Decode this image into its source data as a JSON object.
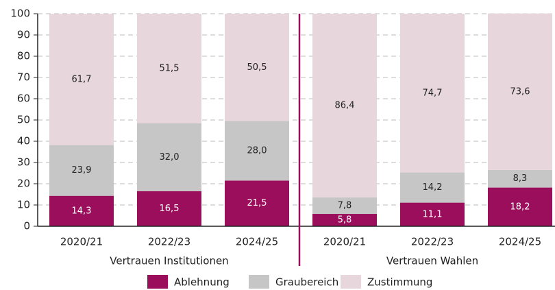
{
  "chart_data": {
    "type": "stacked_bar",
    "categories": [
      "2020/21",
      "2022/23",
      "2024/25",
      "2020/21",
      "2022/23",
      "2024/25"
    ],
    "groups": [
      "Vertrauen Institutionen",
      "Vertrauen Wahlen"
    ],
    "series": [
      {
        "name": "Ablehnung",
        "color": "#9b0e5b",
        "label_color": "#ffffff",
        "values": [
          14.3,
          16.5,
          21.5,
          5.8,
          11.1,
          18.2
        ],
        "value_labels": [
          "14,3",
          "16,5",
          "21,5",
          "5,8",
          "11,1",
          "18,2"
        ]
      },
      {
        "name": "Graubereich",
        "color": "#c6c6c6",
        "label_color": "#222222",
        "values": [
          23.9,
          32.0,
          28.0,
          7.8,
          14.2,
          8.3
        ],
        "value_labels": [
          "23,9",
          "32,0",
          "28,0",
          "7,8",
          "14,2",
          "8,3"
        ]
      },
      {
        "name": "Zustimmung",
        "color": "#e7d6dc",
        "label_color": "#222222",
        "values": [
          61.7,
          51.5,
          50.5,
          86.4,
          74.7,
          73.6
        ],
        "value_labels": [
          "61,7",
          "51,5",
          "50,5",
          "86,4",
          "74,7",
          "73,6"
        ]
      }
    ],
    "ylim": [
      0,
      100
    ],
    "yticks": [
      0,
      10,
      20,
      30,
      40,
      50,
      60,
      70,
      80,
      90,
      100
    ],
    "grid": true,
    "separator_color": "#9b0e5b",
    "legend": "bottom"
  }
}
